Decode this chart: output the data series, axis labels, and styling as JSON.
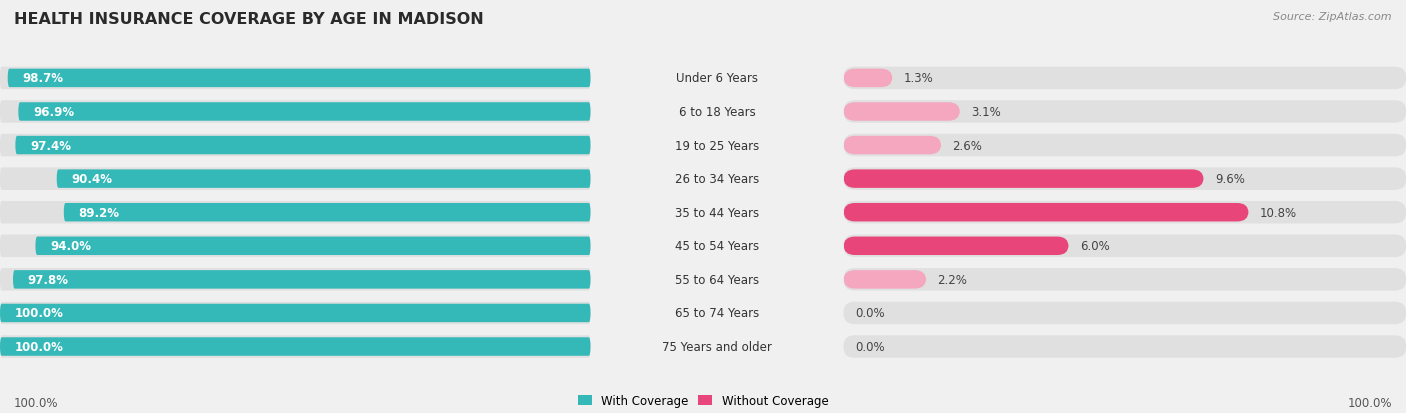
{
  "title": "HEALTH INSURANCE COVERAGE BY AGE IN MADISON",
  "source": "Source: ZipAtlas.com",
  "categories": [
    "Under 6 Years",
    "6 to 18 Years",
    "19 to 25 Years",
    "26 to 34 Years",
    "35 to 44 Years",
    "45 to 54 Years",
    "55 to 64 Years",
    "65 to 74 Years",
    "75 Years and older"
  ],
  "with_coverage": [
    98.7,
    96.9,
    97.4,
    90.4,
    89.2,
    94.0,
    97.8,
    100.0,
    100.0
  ],
  "without_coverage": [
    1.3,
    3.1,
    2.6,
    9.6,
    10.8,
    6.0,
    2.2,
    0.0,
    0.0
  ],
  "color_with": "#35b8b8",
  "color_without_high": "#e8457a",
  "color_without_low": "#f4a7be",
  "color_without_zero": "#f0c8d8",
  "bg_color": "#f0f0f0",
  "bar_bg_color": "#e0e0e0",
  "title_color": "#2a2a2a",
  "source_color": "#888888",
  "x_axis_label_left": "100.0%",
  "x_axis_label_right": "100.0%",
  "without_threshold_high": 5.0
}
